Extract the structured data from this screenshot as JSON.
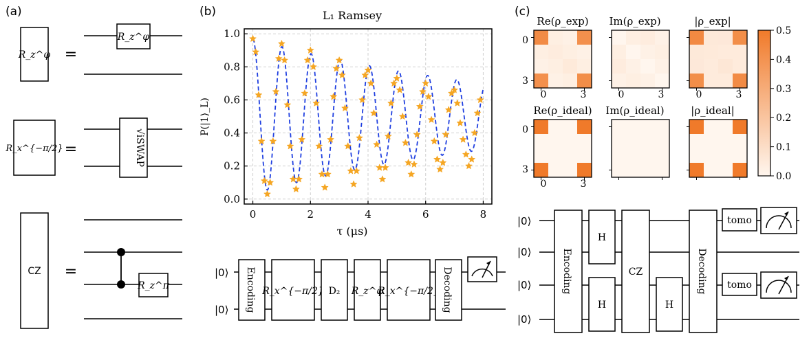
{
  "panels": {
    "a": {
      "label": "(a)",
      "rows": [
        {
          "lhs": "R_z^φ",
          "eq": "=",
          "gate": "R_z^φ"
        },
        {
          "lhs": "R_x^{−π/2}",
          "eq": "=",
          "gate": "√iSWAP"
        },
        {
          "lhs": "CZ",
          "eq": "=",
          "gate": "R_z^π"
        }
      ]
    },
    "b": {
      "label": "(b)",
      "circuit": {
        "inputs": [
          "|0⟩",
          "|0⟩"
        ],
        "gates": [
          "Encoding",
          "R_x^{−π/2}",
          "D₂",
          "R_z^φ",
          "R_x^{−π/2}",
          "Decoding"
        ]
      }
    },
    "c": {
      "label": "(c)",
      "matrix_titles": [
        "Re(ρ_exp)",
        "Im(ρ_exp)",
        "|ρ_exp|",
        "Re(ρ_ideal)",
        "Im(ρ_ideal)",
        "|ρ_ideal|"
      ],
      "matrix_axis_ticks": [
        "0",
        "3"
      ],
      "colorbar_ticks": [
        "0.5",
        "0.4",
        "0.3",
        "0.2",
        "0.1",
        "0.0"
      ],
      "colorbar_colors": [
        "#fff6ee",
        "#f07a2a"
      ],
      "circuit": {
        "inputs": [
          "|0⟩",
          "|0⟩",
          "|0⟩",
          "|0⟩"
        ],
        "gates": [
          "Encoding",
          "H",
          "H",
          "CZ",
          "H",
          "Decoding",
          "tomo",
          "tomo"
        ]
      }
    }
  },
  "chart_data": {
    "type": "scatter",
    "title": "L₁ Ramsey",
    "xlabel": "τ (μs)",
    "ylabel": "P(|1⟩_L)",
    "xlim": [
      -0.3,
      8.3
    ],
    "ylim": [
      -0.03,
      1.03
    ],
    "xticks": [
      0,
      2,
      4,
      6,
      8
    ],
    "yticks": [
      0.0,
      0.2,
      0.4,
      0.6,
      0.8,
      1.0
    ],
    "grid": true,
    "series": [
      {
        "kind": "points",
        "color": "#f5a623",
        "x": [
          0.0,
          0.1,
          0.2,
          0.3,
          0.4,
          0.5,
          0.6,
          0.7,
          0.8,
          0.9,
          1.0,
          1.1,
          1.2,
          1.3,
          1.4,
          1.5,
          1.6,
          1.7,
          1.8,
          1.9,
          2.0,
          2.1,
          2.2,
          2.3,
          2.4,
          2.5,
          2.6,
          2.7,
          2.8,
          2.9,
          3.0,
          3.1,
          3.2,
          3.3,
          3.4,
          3.5,
          3.6,
          3.7,
          3.8,
          3.9,
          4.0,
          4.1,
          4.2,
          4.3,
          4.4,
          4.5,
          4.6,
          4.7,
          4.8,
          4.9,
          5.0,
          5.1,
          5.2,
          5.3,
          5.4,
          5.5,
          5.6,
          5.7,
          5.8,
          5.9,
          6.0,
          6.1,
          6.2,
          6.3,
          6.4,
          6.5,
          6.6,
          6.7,
          6.8,
          6.9,
          7.0,
          7.1,
          7.2,
          7.3,
          7.4,
          7.5,
          7.6,
          7.7,
          7.8,
          7.9
        ],
        "y": [
          0.97,
          0.89,
          0.63,
          0.35,
          0.11,
          0.03,
          0.1,
          0.35,
          0.65,
          0.85,
          0.94,
          0.84,
          0.57,
          0.32,
          0.12,
          0.06,
          0.12,
          0.36,
          0.64,
          0.84,
          0.9,
          0.8,
          0.58,
          0.32,
          0.15,
          0.07,
          0.15,
          0.36,
          0.62,
          0.79,
          0.84,
          0.75,
          0.55,
          0.32,
          0.17,
          0.09,
          0.17,
          0.37,
          0.6,
          0.75,
          0.78,
          0.7,
          0.52,
          0.33,
          0.19,
          0.12,
          0.19,
          0.38,
          0.58,
          0.7,
          0.73,
          0.66,
          0.5,
          0.34,
          0.22,
          0.15,
          0.21,
          0.39,
          0.56,
          0.65,
          0.7,
          0.62,
          0.48,
          0.35,
          0.24,
          0.18,
          0.22,
          0.39,
          0.54,
          0.64,
          0.66,
          0.58,
          0.46,
          0.36,
          0.27,
          0.2,
          0.24,
          0.4,
          0.52,
          0.6
        ]
      },
      {
        "kind": "fit",
        "color": "#1f3fe0",
        "dashed": true
      }
    ]
  }
}
